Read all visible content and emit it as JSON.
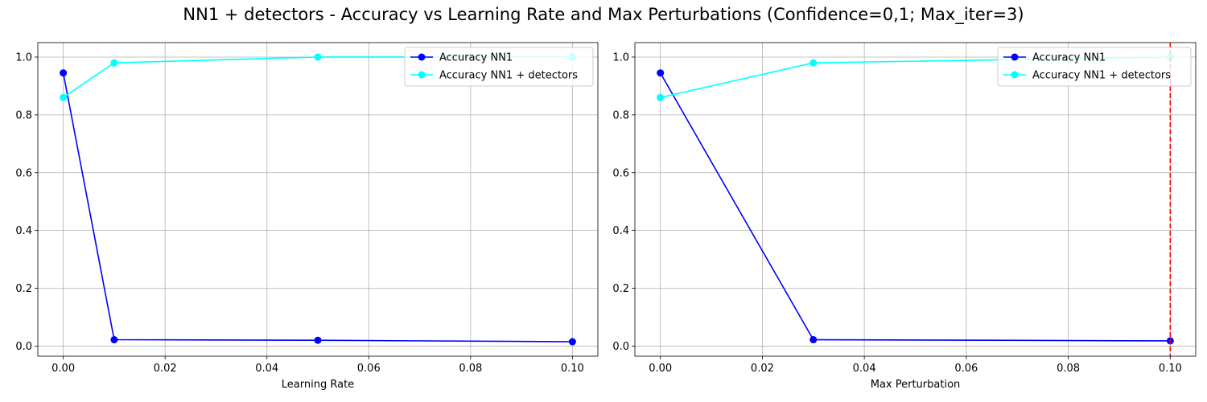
{
  "figure": {
    "suptitle": "NN1 + detectors - Accuracy vs Learning Rate and Max Perturbations (Confidence=0,1; Max_iter=3)"
  },
  "chart_data": [
    {
      "type": "line",
      "title": "",
      "xlabel": "Learning Rate",
      "ylabel": "",
      "xlim": [
        -0.005,
        0.105
      ],
      "ylim": [
        -0.035,
        1.05
      ],
      "xticks": [
        0.0,
        0.02,
        0.04,
        0.06,
        0.08,
        0.1
      ],
      "xtick_labels": [
        "0.00",
        "0.02",
        "0.04",
        "0.06",
        "0.08",
        "0.10"
      ],
      "yticks": [
        0.0,
        0.2,
        0.4,
        0.6,
        0.8,
        1.0
      ],
      "ytick_labels": [
        "0.0",
        "0.2",
        "0.4",
        "0.6",
        "0.8",
        "1.0"
      ],
      "grid": true,
      "legend_position": "upper-right",
      "x": [
        0.0,
        0.01,
        0.05,
        0.1
      ],
      "series": [
        {
          "name": "Accuracy NN1",
          "color": "#0000ff",
          "values": [
            0.945,
            0.022,
            0.02,
            0.015
          ]
        },
        {
          "name": "Accuracy NN1 + detectors",
          "color": "#00ffff",
          "values": [
            0.86,
            0.98,
            1.0,
            1.0
          ]
        }
      ],
      "vlines": []
    },
    {
      "type": "line",
      "title": "",
      "xlabel": "Max Perturbation",
      "ylabel": "",
      "xlim": [
        -0.005,
        0.105
      ],
      "ylim": [
        -0.035,
        1.05
      ],
      "xticks": [
        0.0,
        0.02,
        0.04,
        0.06,
        0.08,
        0.1
      ],
      "xtick_labels": [
        "0.00",
        "0.02",
        "0.04",
        "0.06",
        "0.08",
        "0.10"
      ],
      "yticks": [
        0.0,
        0.2,
        0.4,
        0.6,
        0.8,
        1.0
      ],
      "ytick_labels": [
        "0.0",
        "0.2",
        "0.4",
        "0.6",
        "0.8",
        "1.0"
      ],
      "grid": true,
      "legend_position": "upper-right",
      "x": [
        0.0,
        0.03,
        0.1
      ],
      "series": [
        {
          "name": "Accuracy NN1",
          "color": "#0000ff",
          "values": [
            0.945,
            0.022,
            0.018
          ]
        },
        {
          "name": "Accuracy NN1 + detectors",
          "color": "#00ffff",
          "values": [
            0.86,
            0.98,
            1.0
          ]
        }
      ],
      "vlines": [
        {
          "x": 0.1,
          "color": "#ff0000",
          "style": "dashed"
        }
      ]
    }
  ]
}
